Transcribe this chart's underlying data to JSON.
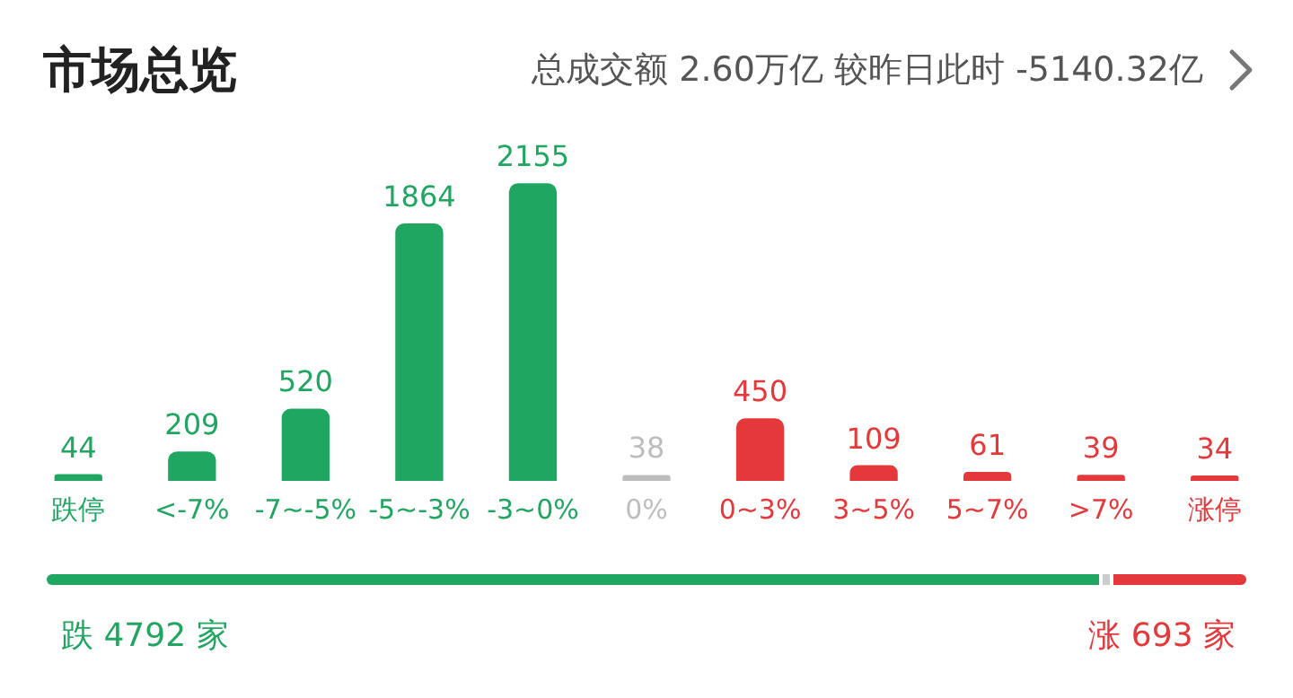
{
  "chart_data": {
    "type": "bar",
    "title": "市场总览",
    "subtitle": "总成交额 2.60万亿 较昨日此时 -5140.32亿",
    "categories": [
      "跌停",
      "<-7%",
      "-7~-5%",
      "-5~-3%",
      "-3~0%",
      "0%",
      "0~3%",
      "3~5%",
      "5~7%",
      ">7%",
      "涨停"
    ],
    "values": [
      44,
      209,
      520,
      1864,
      2155,
      38,
      450,
      109,
      61,
      39,
      34
    ],
    "colors": [
      "#1fa660",
      "#1fa660",
      "#1fa660",
      "#1fa660",
      "#1fa660",
      "#bdbdbd",
      "#e5383b",
      "#e5383b",
      "#e5383b",
      "#e5383b",
      "#e5383b"
    ],
    "data_labels": true,
    "tick_labels": "x",
    "grid": false,
    "legend": false,
    "annotations": [
      "跌 4792 家",
      "涨 693 家"
    ]
  }
}
